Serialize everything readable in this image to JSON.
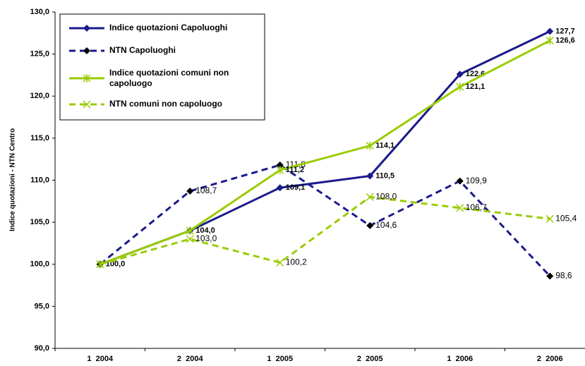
{
  "chart_data": {
    "type": "line",
    "y_label": "Indice quotazioni - NTN Centro",
    "categories": [
      "1  2004",
      "2  2004",
      "1  2005",
      "2  2005",
      "1  2006",
      "2  2006"
    ],
    "ylim": [
      90,
      130
    ],
    "yticks": [
      {
        "value": 90,
        "label": "90,0"
      },
      {
        "value": 95,
        "label": "95,0"
      },
      {
        "value": 100,
        "label": "100,0"
      },
      {
        "value": 105,
        "label": "105,0"
      },
      {
        "value": 110,
        "label": "110,0"
      },
      {
        "value": 115,
        "label": "115,0"
      },
      {
        "value": 120,
        "label": "120,0"
      },
      {
        "value": 125,
        "label": "125,0"
      },
      {
        "value": 130,
        "label": "130,0"
      }
    ],
    "legend": "upper left",
    "series": [
      {
        "name": "Indice quotazioni Capoluoghi",
        "color": "#1a1a8c",
        "dash": false,
        "marker": "diamond",
        "marker_color": "#1a1a8c",
        "label_bold": true,
        "values": [
          100.0,
          104.0,
          109.1,
          110.5,
          122.6,
          127.7
        ],
        "value_labels": [
          "100,0",
          "104,0",
          "109,1",
          "110,5",
          "122,6",
          "127,7"
        ]
      },
      {
        "name": "NTN Capoluoghi",
        "color": "#1a1a8c",
        "dash": true,
        "marker": "diamond",
        "marker_color": "#000000",
        "label_bold": false,
        "values": [
          100.0,
          108.7,
          111.8,
          104.6,
          109.9,
          98.6
        ],
        "value_labels": [
          null,
          "108,7",
          "111,8",
          "104,6",
          "109,9",
          "98,6"
        ]
      },
      {
        "name": "Indice quotazioni comuni non capoluogo",
        "color": "#99cc00",
        "dash": false,
        "marker": "star",
        "marker_color": "#99cc00",
        "label_bold": true,
        "values": [
          100.0,
          104.0,
          111.2,
          114.1,
          121.1,
          126.6
        ],
        "value_labels": [
          null,
          null,
          "111,2",
          "114,1",
          "121,1",
          "126,6"
        ]
      },
      {
        "name": "NTN comuni non capoluogo",
        "color": "#99cc00",
        "dash": true,
        "marker": "x",
        "marker_color": "#99cc00",
        "label_bold": false,
        "values": [
          100.0,
          103.0,
          100.2,
          108.0,
          106.7,
          105.4
        ],
        "value_labels": [
          null,
          "103,0",
          "100,2",
          "108,0",
          "106,7",
          "105,4"
        ]
      }
    ]
  }
}
